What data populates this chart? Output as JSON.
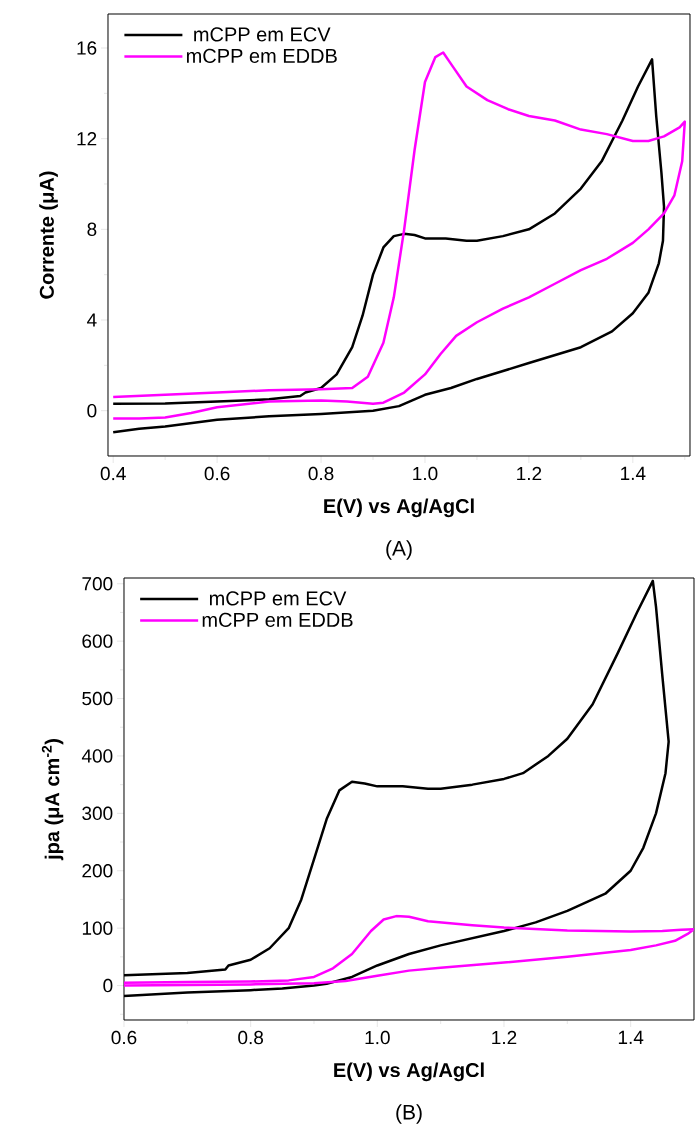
{
  "chart_data": [
    {
      "type": "line",
      "xlabel": "E(V) vs Ag/AgCl",
      "ylabel": "Corrente (μA)",
      "annotations": [
        "(A)"
      ],
      "xlim": [
        0.39,
        1.51
      ],
      "ylim": [
        -2,
        17.5
      ],
      "xticks": [
        0.4,
        {
          "value": 0.5,
          "label": null
        },
        0.6,
        {
          "value": 0.7,
          "label": null
        },
        0.8,
        {
          "value": 0.9,
          "label": null
        },
        {
          "value": 1.0,
          "label": "1.0"
        },
        {
          "value": 1.1,
          "label": null
        },
        1.2,
        {
          "value": 1.3,
          "label": null
        },
        1.4,
        {
          "value": 1.5,
          "label": null
        }
      ],
      "yticks": [
        0,
        {
          "value": 2,
          "label": null
        },
        4,
        {
          "value": 6,
          "label": null
        },
        8,
        {
          "value": 10,
          "label": null
        },
        12,
        {
          "value": 14,
          "label": null
        },
        16
      ],
      "legend": "top left",
      "series": [
        {
          "name": "mCPP em ECV",
          "color": "#000000",
          "x": [
            0.4,
            0.5,
            0.6,
            0.7,
            0.76,
            0.77,
            0.8,
            0.83,
            0.86,
            0.88,
            0.9,
            0.92,
            0.94,
            0.96,
            0.98,
            1.0,
            1.04,
            1.08,
            1.1,
            1.15,
            1.2,
            1.25,
            1.3,
            1.34,
            1.38,
            1.41,
            1.437,
            1.445,
            1.455,
            1.46,
            1.458,
            1.45,
            1.43,
            1.4,
            1.36,
            1.3,
            1.2,
            1.1,
            1.05,
            1.0,
            0.95,
            0.9,
            0.8,
            0.7,
            0.6,
            0.55,
            0.5,
            0.45,
            0.4
          ],
          "values": [
            0.3,
            0.32,
            0.4,
            0.5,
            0.65,
            0.8,
            1.0,
            1.6,
            2.8,
            4.2,
            6.0,
            7.2,
            7.7,
            7.8,
            7.75,
            7.6,
            7.6,
            7.5,
            7.5,
            7.7,
            8.0,
            8.7,
            9.8,
            11.0,
            12.8,
            14.3,
            15.5,
            13.0,
            10.5,
            9.0,
            7.5,
            6.5,
            5.2,
            4.3,
            3.5,
            2.8,
            2.1,
            1.4,
            1.0,
            0.7,
            0.2,
            0.0,
            -0.15,
            -0.25,
            -0.4,
            -0.55,
            -0.7,
            -0.8,
            -0.95
          ]
        },
        {
          "name": "mCPP em EDDB",
          "color": "#ff00ff",
          "x": [
            0.4,
            0.5,
            0.6,
            0.7,
            0.8,
            0.86,
            0.89,
            0.92,
            0.94,
            0.96,
            0.98,
            1.0,
            1.02,
            1.035,
            1.05,
            1.08,
            1.12,
            1.16,
            1.2,
            1.25,
            1.3,
            1.35,
            1.4,
            1.43,
            1.46,
            1.49,
            1.5,
            1.495,
            1.48,
            1.46,
            1.43,
            1.4,
            1.35,
            1.3,
            1.25,
            1.2,
            1.15,
            1.1,
            1.06,
            1.03,
            1.0,
            0.96,
            0.92,
            0.9,
            0.85,
            0.8,
            0.7,
            0.6,
            0.55,
            0.5,
            0.45,
            0.4
          ],
          "values": [
            0.6,
            0.7,
            0.8,
            0.9,
            0.95,
            1.0,
            1.5,
            3.0,
            5.0,
            8.0,
            11.5,
            14.5,
            15.6,
            15.8,
            15.3,
            14.3,
            13.7,
            13.3,
            13.0,
            12.8,
            12.4,
            12.2,
            11.9,
            11.9,
            12.1,
            12.5,
            12.75,
            11.0,
            9.5,
            8.7,
            8.0,
            7.4,
            6.7,
            6.2,
            5.6,
            5.0,
            4.5,
            3.9,
            3.3,
            2.5,
            1.6,
            0.8,
            0.35,
            0.3,
            0.4,
            0.45,
            0.4,
            0.15,
            -0.1,
            -0.3,
            -0.35,
            -0.35
          ]
        }
      ]
    },
    {
      "type": "line",
      "xlabel": "E(V) vs Ag/AgCl",
      "ylabel": "jpa (μA cm$^{-2}$)",
      "annotations": [
        "(B)"
      ],
      "xlim": [
        0.6,
        1.5
      ],
      "ylim": [
        -60,
        710
      ],
      "xticks": [
        0.6,
        {
          "value": 0.7,
          "label": null
        },
        0.8,
        {
          "value": 0.9,
          "label": null
        },
        {
          "value": 1.0,
          "label": "1.0"
        },
        {
          "value": 1.1,
          "label": null
        },
        1.2,
        {
          "value": 1.3,
          "label": null
        },
        1.4
      ],
      "yticks": [
        {
          "value": -50,
          "label": null
        },
        0,
        {
          "value": 50,
          "label": null
        },
        100,
        {
          "value": 150,
          "label": null
        },
        200,
        {
          "value": 250,
          "label": null
        },
        300,
        {
          "value": 350,
          "label": null
        },
        400,
        {
          "value": 450,
          "label": null
        },
        500,
        {
          "value": 550,
          "label": null
        },
        600,
        {
          "value": 650,
          "label": null
        },
        700
      ],
      "legend": "top left",
      "series": [
        {
          "name": "mCPP em ECV",
          "color": "#000000",
          "x": [
            0.6,
            0.7,
            0.76,
            0.765,
            0.8,
            0.83,
            0.86,
            0.88,
            0.9,
            0.92,
            0.94,
            0.96,
            0.98,
            1.0,
            1.04,
            1.08,
            1.1,
            1.15,
            1.2,
            1.23,
            1.27,
            1.3,
            1.34,
            1.38,
            1.41,
            1.435,
            1.44,
            1.45,
            1.46,
            1.455,
            1.44,
            1.42,
            1.4,
            1.36,
            1.3,
            1.25,
            1.2,
            1.1,
            1.05,
            1.0,
            0.96,
            0.92,
            0.9,
            0.85,
            0.8,
            0.7,
            0.6
          ],
          "values": [
            18,
            22,
            28,
            35,
            45,
            65,
            100,
            150,
            220,
            290,
            340,
            355,
            352,
            347,
            347,
            343,
            343,
            350,
            360,
            370,
            400,
            430,
            490,
            580,
            650,
            705,
            660,
            540,
            425,
            370,
            300,
            240,
            200,
            160,
            130,
            110,
            95,
            70,
            55,
            35,
            15,
            3,
            0,
            -5,
            -8,
            -12,
            -18
          ]
        },
        {
          "name": "mCPP em EDDB",
          "color": "#ff00ff",
          "x": [
            0.6,
            0.7,
            0.8,
            0.86,
            0.9,
            0.93,
            0.96,
            0.99,
            1.01,
            1.03,
            1.05,
            1.08,
            1.15,
            1.2,
            1.3,
            1.4,
            1.45,
            1.48,
            1.5,
            1.49,
            1.47,
            1.44,
            1.4,
            1.3,
            1.2,
            1.1,
            1.05,
            1.0,
            0.95,
            0.9,
            0.8,
            0.7,
            0.6
          ],
          "values": [
            5,
            6,
            7,
            9,
            15,
            30,
            55,
            95,
            115,
            121,
            120,
            112,
            105,
            101,
            96,
            94,
            95,
            97,
            98,
            90,
            78,
            70,
            62,
            50,
            40,
            31,
            26,
            17,
            8,
            4,
            2,
            1,
            0
          ]
        }
      ]
    }
  ]
}
